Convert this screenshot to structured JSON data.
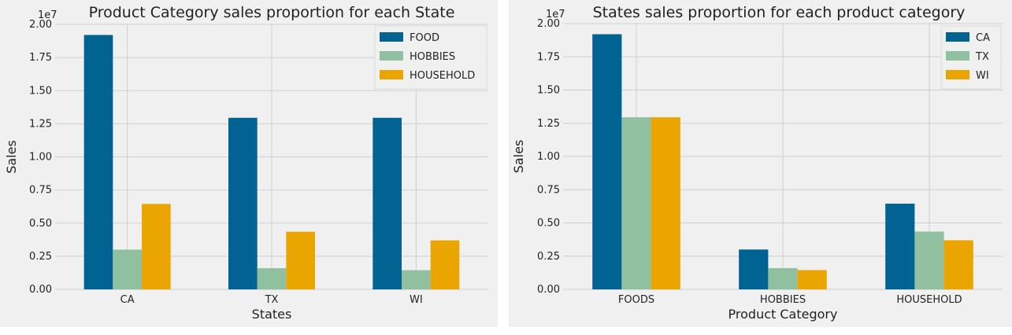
{
  "chart_data": [
    {
      "type": "bar",
      "title": "Product Category sales proportion for each State",
      "xlabel": "States",
      "ylabel": "Sales",
      "y_multiplier": "1e7",
      "ylim": [
        0,
        20000000
      ],
      "yticks": [
        "0.00",
        "0.25",
        "0.50",
        "0.75",
        "1.00",
        "1.25",
        "1.50",
        "1.75",
        "2.00"
      ],
      "categories": [
        "CA",
        "TX",
        "WI"
      ],
      "legend_position": "top-right",
      "grid": true,
      "series": [
        {
          "name": "FOOD",
          "color": "#006391",
          "values": [
            19200000,
            12950000,
            12950000
          ]
        },
        {
          "name": "HOBBIES",
          "color": "#91c0a0",
          "values": [
            3000000,
            1600000,
            1450000
          ]
        },
        {
          "name": "HOUSEHOLD",
          "color": "#eaa500",
          "values": [
            6450000,
            4350000,
            3700000
          ]
        }
      ]
    },
    {
      "type": "bar",
      "title": "States sales proportion for each product category",
      "xlabel": "Product Category",
      "ylabel": "Sales",
      "y_multiplier": "1e7",
      "ylim": [
        0,
        20000000
      ],
      "yticks": [
        "0.00",
        "0.25",
        "0.50",
        "0.75",
        "1.00",
        "1.25",
        "1.50",
        "1.75",
        "2.00"
      ],
      "categories": [
        "FOODS",
        "HOBBIES",
        "HOUSEHOLD"
      ],
      "legend_position": "top-right",
      "grid": true,
      "series": [
        {
          "name": "CA",
          "color": "#006391",
          "values": [
            19200000,
            3000000,
            6450000
          ]
        },
        {
          "name": "TX",
          "color": "#91c0a0",
          "values": [
            12950000,
            1600000,
            4350000
          ]
        },
        {
          "name": "WI",
          "color": "#eaa500",
          "values": [
            12950000,
            1450000,
            3700000
          ]
        }
      ]
    }
  ]
}
